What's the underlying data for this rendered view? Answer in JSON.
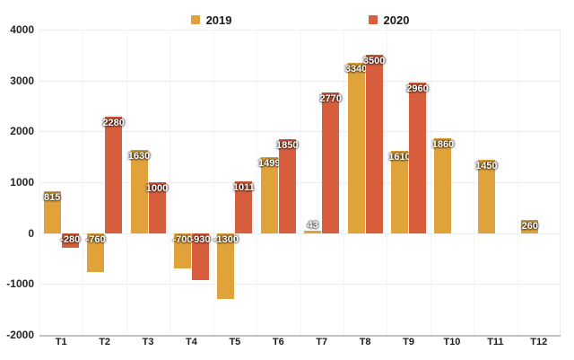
{
  "chart_data": {
    "type": "bar",
    "categories": [
      "T1",
      "T2",
      "T3",
      "T4",
      "T5",
      "T6",
      "T7",
      "T8",
      "T9",
      "T10",
      "T11",
      "T12"
    ],
    "series": [
      {
        "name": "2019",
        "color": "#E0A33C",
        "values": [
          815,
          -760,
          1630,
          -700,
          -1300,
          1499,
          43,
          3340,
          1610,
          1860,
          1450,
          260
        ]
      },
      {
        "name": "2020",
        "color": "#D75F3D",
        "values": [
          -280,
          2280,
          1000,
          -930,
          1011,
          1850,
          2770,
          3500,
          2960,
          null,
          null,
          null
        ]
      }
    ],
    "yticks": [
      4000,
      3000,
      2000,
      1000,
      0,
      -1000,
      -2000
    ],
    "ylim": [
      -2000,
      4000
    ],
    "grid": true,
    "legend_position": "top-center",
    "bar_value_labels": true,
    "colors": {
      "background": "#ffffff",
      "gridline": "#ededed",
      "axis_line": "#c2c2c2",
      "tick_text": "#262626",
      "bar_label_text": "#ffffff"
    }
  }
}
